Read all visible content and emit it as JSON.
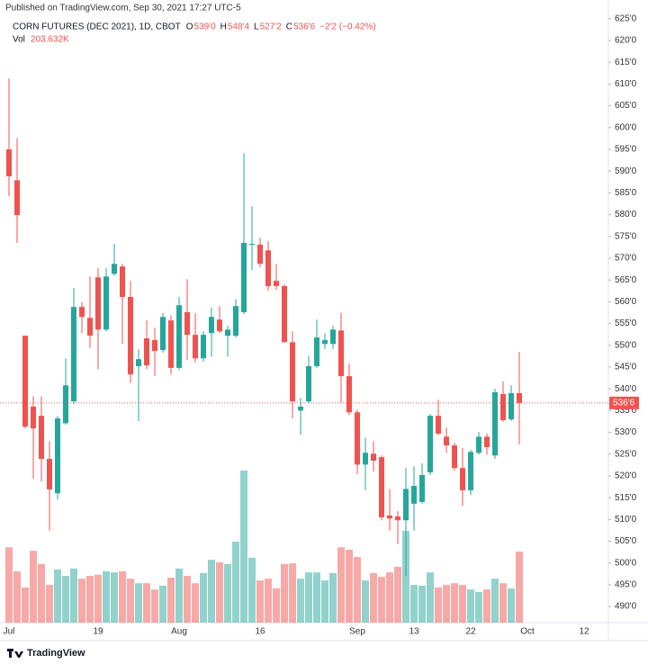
{
  "header": {
    "published": "Published on TradingView.com, Sep 30, 2021 17:27 UTC-5",
    "symbol": "CORN FUTURES (DEC 2021), 1D, CBOT",
    "ohlc": [
      {
        "key": "O",
        "value": "539'0"
      },
      {
        "key": "H",
        "value": "548'4"
      },
      {
        "key": "L",
        "value": "527'2"
      },
      {
        "key": "C",
        "value": "536'6"
      }
    ],
    "change": "−2'2 (−0.42%)",
    "vol_label": "Vol",
    "vol_value": "203.632K"
  },
  "footer": {
    "logo": "TradingView"
  },
  "chart_data": {
    "type": "candlestick",
    "up_color": "#26a69a",
    "down_color": "#ef5350",
    "grid": false,
    "categories": [
      "Jul",
      null,
      null,
      null,
      null,
      null,
      null,
      null,
      null,
      null,
      null,
      "19",
      null,
      null,
      null,
      null,
      null,
      null,
      null,
      null,
      null,
      "Aug",
      null,
      null,
      null,
      null,
      null,
      null,
      null,
      null,
      null,
      "16",
      null,
      null,
      null,
      null,
      null,
      null,
      null,
      null,
      null,
      null,
      null,
      "Sep",
      null,
      null,
      null,
      null,
      null,
      null,
      "13",
      null,
      null,
      null,
      null,
      null,
      null,
      "22",
      null,
      null,
      null,
      null,
      null,
      null,
      "Oct",
      null,
      null,
      null,
      null,
      null,
      null,
      "12"
    ],
    "open": [
      595,
      587.9,
      552.2,
      535.9,
      533.8,
      523.9,
      516,
      532.1,
      537.1,
      558.8,
      556.3,
      565.6,
      553.6,
      566.4,
      568.1,
      561.1,
      545.2,
      551.6,
      551.2,
      548.9,
      555.7,
      544.8,
      557.6,
      552.4,
      547,
      552.8,
      555.9,
      552.2,
      552.2,
      557.6,
      573.1,
      573.1,
      571.8,
      564.8,
      563.6,
      550.7,
      535,
      537.1,
      545.2,
      550.3,
      550.3,
      553.4,
      542.9,
      534.6,
      522.6,
      525.1,
      524.3,
      510.9,
      510.7,
      509.8,
      513.6,
      514,
      520.8,
      533.8,
      529,
      527,
      521.8,
      516.7,
      525.3,
      529,
      524.7,
      538.8,
      533,
      539,
      null,
      null,
      null,
      null,
      null,
      null,
      null,
      null
    ],
    "high": [
      611.3,
      597.6,
      552.2,
      538.3,
      538.3,
      528,
      533.8,
      547,
      563.1,
      560,
      565.8,
      567.7,
      567.7,
      573.3,
      568.7,
      564.8,
      549.1,
      555.7,
      554,
      557.4,
      556.9,
      561.1,
      565.2,
      557.4,
      553.2,
      558.6,
      559,
      554.5,
      560.5,
      594.1,
      581.9,
      574.7,
      573.9,
      568.7,
      564,
      553.2,
      537.9,
      547.6,
      555.9,
      552.8,
      554.5,
      557.4,
      545.8,
      535.2,
      528.8,
      528,
      524.7,
      517,
      511.9,
      521.8,
      522.2,
      522.9,
      534.2,
      537.5,
      531.1,
      527.6,
      526.4,
      526,
      530.1,
      529.7,
      540,
      541.7,
      540.8,
      548.5,
      null,
      null,
      null,
      null,
      null,
      null,
      null,
      null
    ],
    "low": [
      584.2,
      573.5,
      530.9,
      519.3,
      518.7,
      507.4,
      514.6,
      531.7,
      536.5,
      552.8,
      549.3,
      544.5,
      553.2,
      566,
      550.3,
      541.4,
      532.6,
      544.5,
      542.9,
      548.3,
      543.3,
      544.3,
      546.6,
      546,
      546.2,
      547.4,
      552.8,
      547.4,
      551.8,
      557.1,
      567.3,
      567.9,
      562.5,
      562.7,
      550.7,
      533.2,
      529.5,
      536.7,
      544.8,
      549.1,
      549.1,
      536.9,
      534,
      520.4,
      516.7,
      521,
      509.8,
      507.4,
      504.3,
      497,
      507.4,
      513.6,
      520.2,
      529.3,
      525.3,
      521.2,
      513.1,
      515.6,
      524.9,
      524.9,
      523.9,
      532.4,
      532.6,
      527.25,
      null,
      null,
      null,
      null,
      null,
      null,
      null,
      null
    ],
    "close": [
      588.8,
      579.9,
      531.3,
      530.9,
      523.9,
      516.9,
      533.2,
      540.8,
      558.8,
      556.5,
      552.2,
      553.6,
      565.8,
      568.7,
      561.1,
      543.3,
      546.8,
      545.4,
      548.7,
      556.5,
      544.8,
      559.2,
      552.4,
      547,
      552.4,
      556.5,
      553.2,
      553.6,
      559,
      573.5,
      573.3,
      568.7,
      563.6,
      563.6,
      550.7,
      537.1,
      535.9,
      545.2,
      551.8,
      551.2,
      553.6,
      542.9,
      534.6,
      522.6,
      525.3,
      523.5,
      510.5,
      510.2,
      509.8,
      517,
      517.7,
      520.2,
      533.8,
      529.7,
      527,
      521.8,
      516.7,
      525.5,
      529,
      526.6,
      539.2,
      532.8,
      539,
      536.75,
      null,
      null,
      null,
      null,
      null,
      null,
      null,
      null
    ],
    "volume": [
      216000,
      147000,
      101000,
      206000,
      168000,
      108000,
      152000,
      134000,
      155000,
      126000,
      134000,
      137000,
      147000,
      144000,
      147000,
      126000,
      113000,
      113000,
      95000,
      106000,
      129000,
      155000,
      134000,
      113000,
      142000,
      180000,
      173000,
      168000,
      232000,
      436000,
      186000,
      121000,
      126000,
      98000,
      168000,
      170000,
      126000,
      144000,
      144000,
      121000,
      142000,
      216000,
      209000,
      188000,
      121000,
      142000,
      131000,
      144000,
      160000,
      263000,
      108000,
      106000,
      144000,
      101000,
      108000,
      113000,
      108000,
      95000,
      88000,
      95000,
      126000,
      113000,
      98000,
      203632,
      null,
      null,
      null,
      null,
      null,
      null,
      null,
      null
    ],
    "last_price": {
      "value": 536.75,
      "label": "536'6"
    },
    "ylim": [
      486.3,
      629.3
    ],
    "yticks": [
      {
        "value": 490,
        "label": "490'0"
      },
      {
        "value": 495,
        "label": "495'0"
      },
      {
        "value": 500,
        "label": "500'0"
      },
      {
        "value": 505,
        "label": "505'0"
      },
      {
        "value": 510,
        "label": "510'0"
      },
      {
        "value": 515,
        "label": "515'0"
      },
      {
        "value": 520,
        "label": "520'0"
      },
      {
        "value": 525,
        "label": "525'0"
      },
      {
        "value": 530,
        "label": "530'0"
      },
      {
        "value": 535,
        "label": "535'0"
      },
      {
        "value": 540,
        "label": "540'0"
      },
      {
        "value": 545,
        "label": "545'0"
      },
      {
        "value": 550,
        "label": "550'0"
      },
      {
        "value": 555,
        "label": "555'0"
      },
      {
        "value": 560,
        "label": "560'0"
      },
      {
        "value": 565,
        "label": "565'0"
      },
      {
        "value": 570,
        "label": "570'0"
      },
      {
        "value": 575,
        "label": "575'0"
      },
      {
        "value": 580,
        "label": "580'0"
      },
      {
        "value": 585,
        "label": "585'0"
      },
      {
        "value": 590,
        "label": "590'0"
      },
      {
        "value": 595,
        "label": "595'0"
      },
      {
        "value": 600,
        "label": "600'0"
      },
      {
        "value": 605,
        "label": "605'0"
      },
      {
        "value": 610,
        "label": "610'0"
      },
      {
        "value": 615,
        "label": "615'0"
      },
      {
        "value": 620,
        "label": "620'0"
      },
      {
        "value": 625,
        "label": "625'0"
      }
    ]
  }
}
